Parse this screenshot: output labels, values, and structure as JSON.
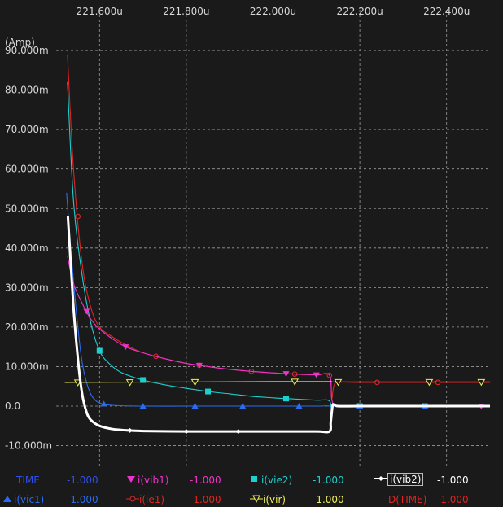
{
  "chart_data": {
    "type": "line",
    "ylabel": "(Amp)",
    "xlim": [
      221.5,
      222.5
    ],
    "ylim": [
      -12,
      90
    ],
    "x_ticks": [
      221.6,
      221.8,
      222.0,
      222.2,
      222.4
    ],
    "x_tick_labels": [
      "221.600u",
      "221.800u",
      "222.000u",
      "222.200u",
      "222.400u"
    ],
    "y_ticks": [
      90,
      80,
      70,
      60,
      50,
      40,
      30,
      20,
      10,
      0,
      -10
    ],
    "y_tick_labels": [
      "90.000m",
      "80.000m",
      "70.000m",
      "60.000m",
      "50.000m",
      "40.000m",
      "30.000m",
      "20.000m",
      "10.000m",
      "0.0",
      "-10.000m"
    ],
    "grid": true,
    "series": [
      {
        "name": "i(ie1)",
        "color": "#e02424",
        "marker": "circle",
        "x": [
          221.526,
          221.54,
          221.56,
          221.58,
          221.6,
          221.63,
          221.66,
          221.7,
          221.75,
          221.8,
          221.85,
          221.9,
          221.95,
          222.0,
          222.05,
          222.1,
          222.13,
          222.135,
          222.14,
          222.15,
          222.2,
          222.3,
          222.4,
          222.5
        ],
        "y": [
          89,
          60,
          36,
          25,
          20,
          17.5,
          15.5,
          13.5,
          12,
          10.8,
          10,
          9.3,
          8.8,
          8.4,
          8.1,
          7.9,
          7.8,
          2,
          5,
          6,
          6,
          6,
          6,
          6
        ]
      },
      {
        "name": "i(vie2)",
        "color": "#1ecfd0",
        "marker": "square",
        "x": [
          221.526,
          221.54,
          221.56,
          221.58,
          221.6,
          221.62,
          221.65,
          221.7,
          221.75,
          221.8,
          221.85,
          221.9,
          221.95,
          222.0,
          222.05,
          222.1,
          222.13,
          222.135,
          222.14,
          222.15,
          222.2,
          222.3,
          222.4,
          222.5
        ],
        "y": [
          82,
          52,
          33,
          21,
          14,
          11,
          8.5,
          6.6,
          5.4,
          4.5,
          3.7,
          3.1,
          2.5,
          2.1,
          1.8,
          1.5,
          1.3,
          -2,
          0.5,
          0,
          0,
          0,
          0,
          0
        ]
      },
      {
        "name": "i(vic1)",
        "color": "#2a6cf0",
        "marker": "triangle",
        "x": [
          221.524,
          221.535,
          221.55,
          221.56,
          221.57,
          221.58,
          221.59,
          221.6,
          221.62,
          221.65,
          221.7,
          221.8,
          221.9,
          222.0,
          222.1,
          222.13,
          222.135,
          222.14,
          222.15,
          222.3,
          222.5
        ],
        "y": [
          54,
          38,
          20,
          11,
          6,
          3,
          1.5,
          0.8,
          0.3,
          0.1,
          0,
          0,
          0,
          0,
          0,
          0,
          -1,
          0,
          0,
          0,
          0
        ]
      },
      {
        "name": "i(vib1)",
        "color": "#ee33cc",
        "marker": "triangle-down",
        "x": [
          221.526,
          221.54,
          221.56,
          221.58,
          221.6,
          221.63,
          221.66,
          221.7,
          221.75,
          221.8,
          221.85,
          221.9,
          221.95,
          222.0,
          222.05,
          222.1,
          222.13,
          222.135,
          222.14,
          222.15,
          222.2,
          222.3,
          222.4,
          222.5
        ],
        "y": [
          38,
          31,
          26,
          22,
          19.5,
          17,
          15,
          13.5,
          12,
          10.8,
          10,
          9.3,
          8.8,
          8.4,
          8.1,
          7.9,
          7.8,
          2,
          0.5,
          0,
          0,
          0,
          0,
          0
        ]
      },
      {
        "name": "i(vir)",
        "color": "#eeee55",
        "marker": "triangle-down-open",
        "x": [
          221.52,
          221.8,
          222.0,
          222.13,
          222.14,
          222.5
        ],
        "y": [
          6,
          6.1,
          6.2,
          6.2,
          6.1,
          6.1
        ]
      },
      {
        "name": "i(vib2)",
        "color": "#ffffff",
        "marker": "diamond",
        "x": [
          221.527,
          221.54,
          221.55,
          221.56,
          221.57,
          221.58,
          221.6,
          221.63,
          221.66,
          221.7,
          221.8,
          221.9,
          222.0,
          222.1,
          222.13,
          222.133,
          222.137,
          222.14,
          222.15,
          222.2,
          222.3,
          222.4,
          222.5
        ],
        "y": [
          48,
          25,
          12,
          3,
          -1.5,
          -3.5,
          -5,
          -5.8,
          -6.1,
          -6.3,
          -6.4,
          -6.4,
          -6.4,
          -6.4,
          -6.4,
          -4,
          0,
          0.4,
          0,
          0,
          0,
          0,
          0
        ]
      }
    ]
  },
  "legend": {
    "row1": [
      {
        "label": "TIME",
        "value": "-1.000",
        "color": "#3050e8"
      },
      {
        "label": "i(vib1)",
        "value": "-1.000",
        "color": "#ee33cc"
      },
      {
        "label": "i(vie2)",
        "value": "-1.000",
        "color": "#1ecfd0"
      },
      {
        "label": "i(vib2)",
        "value": "-1.000",
        "color": "#ffffff"
      }
    ],
    "row2": [
      {
        "label": "i(vic1)",
        "value": "-1.000",
        "color": "#2a6cf0"
      },
      {
        "label": "i(ie1)",
        "value": "-1.000",
        "color": "#e02424"
      },
      {
        "label": "i(vir)",
        "value": "-1.000",
        "color": "#eeee55"
      },
      {
        "label": "D(TIME)",
        "value": "-1.000",
        "color": "#e02424"
      }
    ]
  }
}
